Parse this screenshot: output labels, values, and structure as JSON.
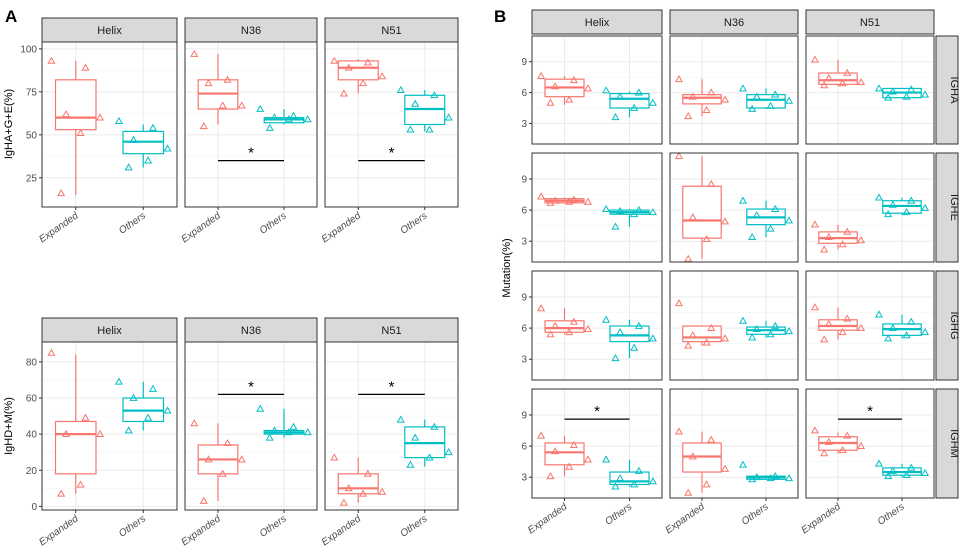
{
  "panel_labels": [
    "A",
    "B"
  ],
  "colors": {
    "expanded": "#f8766d",
    "others": "#00bfc4",
    "strip": "#d9d9d9",
    "grid": "#ebebeb",
    "sig": "#000000"
  },
  "categories": [
    "Expanded",
    "Others"
  ],
  "facets": [
    "Helix",
    "N36",
    "N51"
  ],
  "chart_data": [
    {
      "id": "A_top",
      "type": "box",
      "ylabel": "IgHA+G+E(%)",
      "ylim": [
        8,
        104
      ],
      "yticks": [
        25,
        50,
        75,
        100
      ],
      "facets": [
        {
          "name": "Helix",
          "boxes": [
            {
              "q1": 53,
              "median": 60,
              "q3": 82,
              "lo": 15,
              "hi": 93,
              "points": [
                93,
                89,
                62,
                60,
                51,
                16
              ]
            },
            {
              "q1": 39,
              "median": 46,
              "q3": 52,
              "lo": 31,
              "hi": 56,
              "points": [
                58,
                54,
                47,
                42,
                35,
                31
              ]
            }
          ]
        },
        {
          "name": "N36",
          "sig": "*",
          "sig_y": 35,
          "boxes": [
            {
              "q1": 65,
              "median": 74,
              "q3": 82,
              "lo": 56,
              "hi": 97,
              "points": [
                97,
                82,
                80,
                67,
                67,
                55
              ]
            },
            {
              "q1": 57,
              "median": 59,
              "q3": 60,
              "lo": 56,
              "hi": 65,
              "points": [
                65,
                61,
                60,
                59,
                59,
                54
              ]
            }
          ]
        },
        {
          "name": "N51",
          "sig": "*",
          "sig_y": 35,
          "boxes": [
            {
              "q1": 82,
              "median": 89,
              "q3": 93,
              "lo": 74,
              "hi": 94,
              "points": [
                93,
                92,
                89,
                84,
                80,
                74
              ]
            },
            {
              "q1": 56,
              "median": 65,
              "q3": 73,
              "lo": 52,
              "hi": 76,
              "points": [
                76,
                73,
                68,
                60,
                53,
                53
              ]
            }
          ]
        }
      ]
    },
    {
      "id": "A_bottom",
      "type": "box",
      "ylabel": "IgHD+M(%)",
      "ylim": [
        -2,
        91
      ],
      "yticks": [
        0,
        20,
        40,
        60,
        80
      ],
      "facets": [
        {
          "name": "Helix",
          "boxes": [
            {
              "q1": 18,
              "median": 40,
              "q3": 47,
              "lo": 7,
              "hi": 84,
              "points": [
                85,
                49,
                40,
                40,
                12,
                7
              ]
            },
            {
              "q1": 47,
              "median": 53,
              "q3": 60,
              "lo": 42,
              "hi": 69,
              "points": [
                69,
                65,
                60,
                53,
                49,
                42
              ]
            }
          ]
        },
        {
          "name": "N36",
          "sig": "*",
          "sig_y": 62,
          "boxes": [
            {
              "q1": 18,
              "median": 26,
              "q3": 34,
              "lo": 3,
              "hi": 46,
              "points": [
                46,
                35,
                26,
                26,
                18,
                3
              ]
            },
            {
              "q1": 40,
              "median": 41,
              "q3": 42,
              "lo": 38,
              "hi": 54,
              "points": [
                54,
                44,
                42,
                41,
                41,
                38
              ]
            }
          ]
        },
        {
          "name": "N51",
          "sig": "*",
          "sig_y": 62,
          "boxes": [
            {
              "q1": 7,
              "median": 10,
              "q3": 18,
              "lo": 2,
              "hi": 27,
              "points": [
                27,
                18,
                10,
                8,
                7,
                2
              ]
            },
            {
              "q1": 27,
              "median": 35,
              "q3": 44,
              "lo": 22,
              "hi": 48,
              "points": [
                48,
                44,
                38,
                30,
                27,
                23
              ]
            }
          ]
        }
      ]
    },
    {
      "id": "B",
      "type": "box",
      "ylabel": "Mutation(%)",
      "ylim": [
        1,
        11.5
      ],
      "yticks": [
        3,
        6,
        9
      ],
      "rows": [
        {
          "name": "IGHA",
          "facets": [
            {
              "boxes": [
                {
                  "q1": 5.6,
                  "median": 6.5,
                  "q3": 7.3,
                  "lo": 4.8,
                  "hi": 7.6,
                  "points": [
                    7.6,
                    7.2,
                    6.6,
                    6.4,
                    5.3,
                    5.0
                  ]
                },
                {
                  "q1": 4.5,
                  "median": 5.4,
                  "q3": 5.9,
                  "lo": 3.6,
                  "hi": 6.1,
                  "points": [
                    6.2,
                    6.0,
                    5.6,
                    5.0,
                    4.5,
                    3.6
                  ]
                }
              ]
            },
            {
              "boxes": [
                {
                  "q1": 4.9,
                  "median": 5.5,
                  "q3": 5.8,
                  "lo": 3.7,
                  "hi": 7.3,
                  "points": [
                    7.3,
                    6.0,
                    5.6,
                    5.3,
                    4.3,
                    3.7
                  ]
                },
                {
                  "q1": 4.5,
                  "median": 5.3,
                  "q3": 5.8,
                  "lo": 4.4,
                  "hi": 6.4,
                  "points": [
                    6.4,
                    5.8,
                    5.6,
                    5.2,
                    4.7,
                    4.4
                  ]
                }
              ]
            },
            {
              "boxes": [
                {
                  "q1": 6.8,
                  "median": 7.2,
                  "q3": 7.9,
                  "lo": 6.6,
                  "hi": 9.2,
                  "points": [
                    9.2,
                    7.9,
                    7.4,
                    7.0,
                    6.9,
                    6.7
                  ]
                },
                {
                  "q1": 5.5,
                  "median": 6.0,
                  "q3": 6.4,
                  "lo": 5.4,
                  "hi": 6.4,
                  "points": [
                    6.4,
                    6.3,
                    6.1,
                    5.8,
                    5.6,
                    5.5
                  ]
                }
              ]
            }
          ]
        },
        {
          "name": "IGHE",
          "facets": [
            {
              "boxes": [
                {
                  "q1": 6.7,
                  "median": 6.9,
                  "q3": 7.1,
                  "lo": 6.7,
                  "hi": 7.2,
                  "points": [
                    7.3,
                    7.0,
                    6.9,
                    6.8,
                    6.8,
                    6.7
                  ]
                },
                {
                  "q1": 5.6,
                  "median": 5.8,
                  "q3": 6.0,
                  "lo": 4.4,
                  "hi": 6.1,
                  "points": [
                    6.1,
                    6.0,
                    5.9,
                    5.8,
                    5.6,
                    4.4
                  ]
                }
              ]
            },
            {
              "boxes": [
                {
                  "q1": 3.3,
                  "median": 5.0,
                  "q3": 8.3,
                  "lo": 1.3,
                  "hi": 11.2,
                  "points": [
                    11.2,
                    8.5,
                    5.3,
                    4.9,
                    3.2,
                    1.3
                  ]
                },
                {
                  "q1": 4.6,
                  "median": 5.3,
                  "q3": 6.1,
                  "lo": 3.4,
                  "hi": 6.9,
                  "points": [
                    6.9,
                    6.1,
                    5.5,
                    5.0,
                    4.2,
                    3.4
                  ]
                }
              ]
            },
            {
              "boxes": [
                {
                  "q1": 2.8,
                  "median": 3.3,
                  "q3": 3.9,
                  "lo": 2.2,
                  "hi": 4.6,
                  "points": [
                    4.6,
                    3.9,
                    3.4,
                    3.1,
                    2.7,
                    2.2
                  ]
                },
                {
                  "q1": 5.7,
                  "median": 6.4,
                  "q3": 6.9,
                  "lo": 5.5,
                  "hi": 7.2,
                  "points": [
                    7.2,
                    6.9,
                    6.5,
                    6.2,
                    5.8,
                    5.6
                  ]
                }
              ]
            }
          ]
        },
        {
          "name": "IGHG",
          "facets": [
            {
              "boxes": [
                {
                  "q1": 5.6,
                  "median": 6.0,
                  "q3": 6.7,
                  "lo": 5.4,
                  "hi": 7.9,
                  "points": [
                    7.9,
                    6.6,
                    6.2,
                    5.9,
                    5.6,
                    5.4
                  ]
                },
                {
                  "q1": 4.7,
                  "median": 5.3,
                  "q3": 6.2,
                  "lo": 3.1,
                  "hi": 6.8,
                  "points": [
                    6.8,
                    6.2,
                    5.6,
                    5.0,
                    4.1,
                    3.1
                  ]
                }
              ]
            },
            {
              "boxes": [
                {
                  "q1": 4.7,
                  "median": 5.1,
                  "q3": 6.2,
                  "lo": 4.3,
                  "hi": 6.2,
                  "points": [
                    8.4,
                    6.0,
                    5.3,
                    5.0,
                    4.6,
                    4.3
                  ]
                },
                {
                  "q1": 5.4,
                  "median": 5.8,
                  "q3": 6.1,
                  "lo": 5.1,
                  "hi": 6.7,
                  "points": [
                    6.7,
                    6.2,
                    5.9,
                    5.7,
                    5.4,
                    5.1
                  ]
                }
              ]
            },
            {
              "boxes": [
                {
                  "q1": 5.8,
                  "median": 6.2,
                  "q3": 6.8,
                  "lo": 4.9,
                  "hi": 8.0,
                  "points": [
                    8.0,
                    6.9,
                    6.4,
                    6.0,
                    5.6,
                    4.9
                  ]
                },
                {
                  "q1": 5.3,
                  "median": 5.9,
                  "q3": 6.4,
                  "lo": 5.0,
                  "hi": 7.3,
                  "points": [
                    7.3,
                    6.6,
                    6.0,
                    5.6,
                    5.3,
                    5.0
                  ]
                }
              ]
            }
          ]
        },
        {
          "name": "IGHM",
          "facets": [
            {
              "sig": "*",
              "sig_y": 8.6,
              "boxes": [
                {
                  "q1": 4.2,
                  "median": 5.4,
                  "q3": 6.3,
                  "lo": 3.1,
                  "hi": 7.0,
                  "points": [
                    7.0,
                    6.1,
                    5.5,
                    4.7,
                    4.0,
                    3.1
                  ]
                },
                {
                  "q1": 2.3,
                  "median": 2.6,
                  "q3": 3.5,
                  "lo": 2.1,
                  "hi": 4.7,
                  "points": [
                    4.7,
                    3.6,
                    2.9,
                    2.6,
                    2.3,
                    2.1
                  ]
                }
              ]
            },
            {
              "boxes": [
                {
                  "q1": 3.5,
                  "median": 5.0,
                  "q3": 6.3,
                  "lo": 1.5,
                  "hi": 7.4,
                  "points": [
                    7.4,
                    6.6,
                    5.0,
                    3.8,
                    2.3,
                    1.5
                  ]
                },
                {
                  "q1": 2.8,
                  "median": 3.0,
                  "q3": 3.1,
                  "lo": 2.8,
                  "hi": 3.2,
                  "points": [
                    4.2,
                    3.1,
                    3.0,
                    2.9,
                    2.9,
                    2.8
                  ]
                }
              ]
            },
            {
              "sig": "*",
              "sig_y": 8.6,
              "boxes": [
                {
                  "q1": 5.6,
                  "median": 6.3,
                  "q3": 6.9,
                  "lo": 5.3,
                  "hi": 7.3,
                  "points": [
                    7.5,
                    7.0,
                    6.4,
                    6.0,
                    5.6,
                    5.3
                  ]
                },
                {
                  "q1": 3.2,
                  "median": 3.5,
                  "q3": 3.9,
                  "lo": 3.0,
                  "hi": 4.3,
                  "points": [
                    4.3,
                    3.9,
                    3.6,
                    3.4,
                    3.2,
                    3.1
                  ]
                }
              ]
            }
          ]
        }
      ]
    }
  ]
}
